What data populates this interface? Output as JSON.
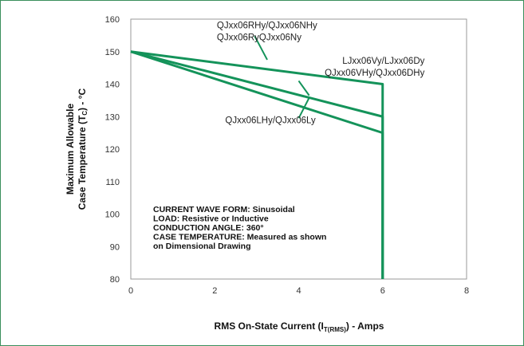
{
  "chart_data": {
    "type": "line",
    "xlabel": "RMS On-State Current (I",
    "xlabel_sub": "T(RMS)",
    "xlabel_suffix": ") - Amps",
    "ylabel_line1": "Maximum Allowable",
    "ylabel_line2_prefix": "Case Temperature (T",
    "ylabel_line2_sub": "C",
    "ylabel_line2_suffix": ") - °C",
    "xlim": [
      0,
      8
    ],
    "ylim": [
      80,
      160
    ],
    "xticks": [
      "0",
      "2",
      "4",
      "6",
      "8"
    ],
    "yticks": [
      "80",
      "90",
      "100",
      "110",
      "120",
      "130",
      "140",
      "150",
      "160"
    ],
    "grid": false,
    "series_color": "#14935a",
    "series": [
      {
        "x": [
          0,
          6,
          6
        ],
        "y": [
          150,
          140,
          80
        ]
      },
      {
        "x": [
          0,
          6,
          6
        ],
        "y": [
          150,
          130,
          80
        ]
      },
      {
        "x": [
          0,
          6,
          6
        ],
        "y": [
          150,
          125,
          80
        ]
      }
    ],
    "annotations": [
      {
        "lines": [
          "QJxx06RHy/QJxx06NHy",
          "QJxx06RyQJxx06Ny"
        ]
      },
      {
        "lines": [
          "LJxx06Vy/LJxx06Dy",
          "QJxx06VHy/QJxx06DHy"
        ]
      },
      {
        "lines": [
          "QJxx06LHy/QJxx06Ly"
        ]
      }
    ],
    "notes": [
      "CURRENT WAVE FORM: Sinusoidal",
      "LOAD: Resistive or Inductive",
      "CONDUCTION ANGLE: 360°",
      "CASE TEMPERATURE: Measured as shown",
      "on Dimensional Drawing"
    ]
  }
}
